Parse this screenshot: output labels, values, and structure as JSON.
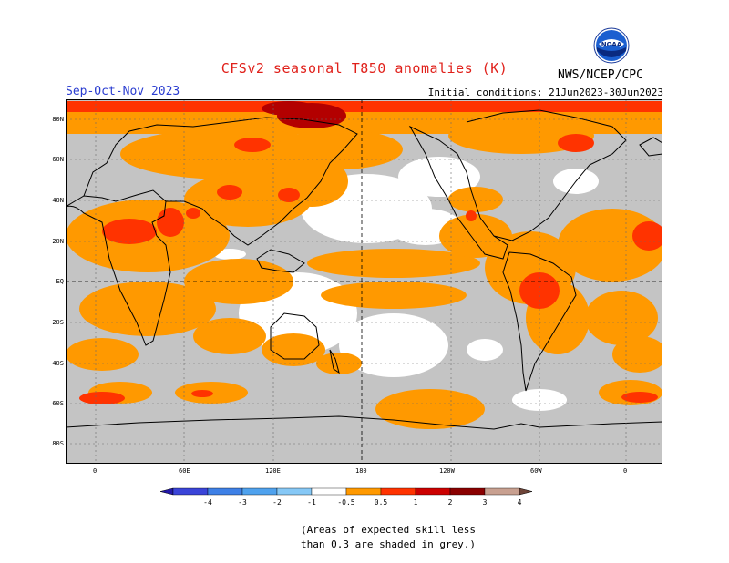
{
  "title": "CFSv2 seasonal T850 anomalies (K)",
  "season": "Sep-Oct-Nov 2023",
  "initial_conditions": "Initial conditions: 21Jun2023-30Jun2023",
  "agency": "NWS/NCEP/CPC",
  "logo_text": "NOAA",
  "map": {
    "lat_labels": [
      "80N",
      "60N",
      "40N",
      "20N",
      "EQ",
      "20S",
      "40S",
      "60S",
      "80S"
    ],
    "lon_labels": [
      "0",
      "60E",
      "120E",
      "180",
      "120W",
      "60W",
      "0"
    ]
  },
  "colorbar": {
    "labels": [
      "-4",
      "-3",
      "-2",
      "-1",
      "-0.5",
      "0.5",
      "1",
      "2",
      "3",
      "4"
    ],
    "colors": [
      "#2318a8",
      "#3a44d8",
      "#3e80e6",
      "#4fa2ee",
      "#86c8f6",
      "#ffffff",
      "#ff9900",
      "#ff3300",
      "#cc0000",
      "#8a0000",
      "#c8a090",
      "#6e4438"
    ]
  },
  "footnote": [
    "(Areas of expected skill less",
    "than 0.3 are shaded in grey.)"
  ]
}
